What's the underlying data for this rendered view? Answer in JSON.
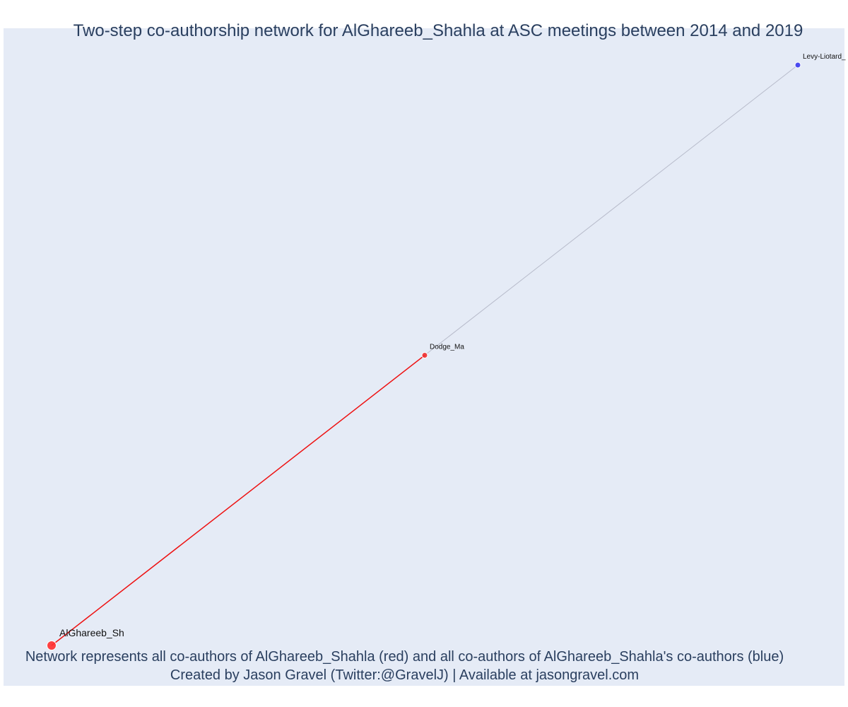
{
  "title": "Two-step co-authorship network for AlGhareeb_Shahla at ASC meetings between 2014 and 2019",
  "caption": {
    "line1": "Network represents all co-authors of AlGhareeb_Shahla (red) and all co-authors of AlGhareeb_Shahla's co-authors (blue)",
    "line2": "Created by Jason Gravel (Twitter:@GravelJ) | Available at jasongravel.com"
  },
  "colors": {
    "focal": "#ff2d2d",
    "coauthor": "#ef2d2d",
    "second_step": "#3a3af0",
    "direct_edge": "#ee1111",
    "indirect_edge": "#b8bccb",
    "label": "#111111"
  },
  "chart_data": {
    "type": "network",
    "nodes": [
      {
        "id": "AlGhareeb_Sh",
        "label": "AlGhareeb_Sh",
        "group": "focal",
        "x": 0,
        "y": 0
      },
      {
        "id": "Dodge_Ma",
        "label": "Dodge_Ma",
        "group": "coauthor",
        "x": 0.5,
        "y": 0.5
      },
      {
        "id": "Levy-Liotard_",
        "label": "Levy-Liotard_",
        "group": "second_step",
        "x": 1,
        "y": 1
      }
    ],
    "edges": [
      {
        "source": "AlGhareeb_Sh",
        "target": "Dodge_Ma",
        "type": "direct"
      },
      {
        "source": "Dodge_Ma",
        "target": "Levy-Liotard_",
        "type": "indirect"
      }
    ],
    "xlim": [
      0,
      1
    ],
    "ylim": [
      0,
      1
    ],
    "grid": false
  }
}
